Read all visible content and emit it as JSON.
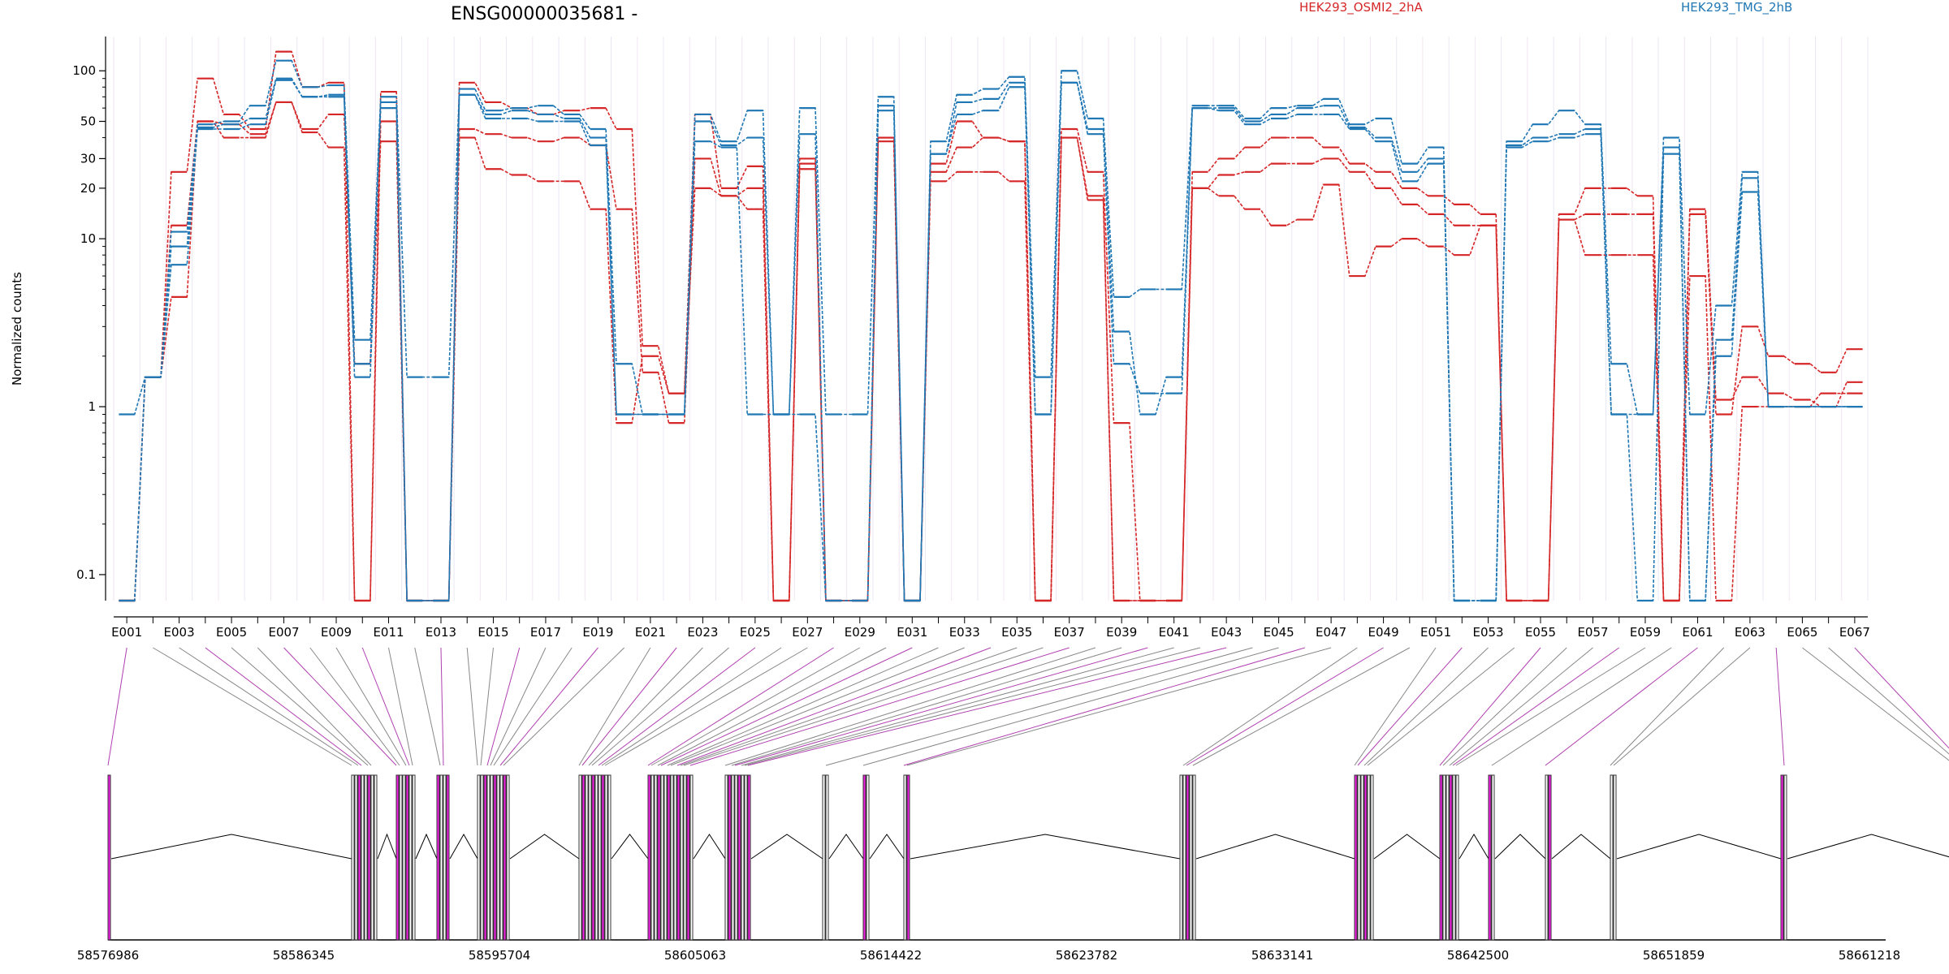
{
  "chart_data": {
    "type": "line",
    "title": "ENSG00000035681 -",
    "ylabel": "Normalized counts",
    "y_scale": "log",
    "ylim": [
      0.07,
      160
    ],
    "y_ticks": [
      0.1,
      1,
      10,
      20,
      30,
      50,
      100
    ],
    "y_tick_labels": [
      "0.1",
      "1",
      "10",
      "20",
      "30",
      "50",
      "100"
    ],
    "exon_labels": [
      "E001",
      "E003",
      "E005",
      "E007",
      "E009",
      "E011",
      "E013",
      "E015",
      "E017",
      "E019",
      "E021",
      "E023",
      "E025",
      "E027",
      "E029",
      "E031",
      "E033",
      "E035",
      "E037",
      "E039",
      "E041",
      "E043",
      "E045",
      "E047",
      "E049",
      "E051",
      "E053",
      "E055",
      "E057",
      "E059",
      "E061",
      "E063",
      "E065",
      "E067"
    ],
    "legend": [
      {
        "label": "HEK293_OSMI2_2hA",
        "color": "#d62728"
      },
      {
        "label": "HEK293_TMG_2hB",
        "color": "#1f77b4"
      }
    ],
    "series": [
      {
        "group": "HEK293_OSMI2_2hA",
        "color": "#d62728",
        "values": [
          0.07,
          1.5,
          25,
          90,
          55,
          45,
          130,
          80,
          85,
          0.07,
          75,
          0.07,
          0.07,
          85,
          65,
          60,
          55,
          58,
          60,
          45,
          2.3,
          1.2,
          55,
          20,
          27,
          0.07,
          30,
          0.07,
          0.07,
          40,
          0.07,
          28,
          50,
          40,
          38,
          0.07,
          45,
          25,
          0.8,
          0.07,
          0.07,
          25,
          30,
          35,
          40,
          40,
          35,
          28,
          25,
          20,
          18,
          16,
          14,
          0.07,
          0.07,
          14,
          20,
          20,
          18,
          0.07,
          15,
          1.1,
          1.5,
          1.2,
          1.1,
          1.0,
          1.4
        ]
      },
      {
        "group": "HEK293_OSMI2_2hA",
        "color": "#d62728",
        "values": [
          0.07,
          1.5,
          12,
          50,
          48,
          42,
          65,
          45,
          55,
          1.8,
          38,
          0.07,
          0.07,
          45,
          42,
          40,
          38,
          40,
          36,
          15,
          1.6,
          0.8,
          30,
          18,
          20,
          0.07,
          28,
          0.07,
          0.07,
          38,
          0.07,
          25,
          35,
          40,
          38,
          0.07,
          40,
          18,
          0.07,
          0.07,
          0.07,
          20,
          24,
          25,
          28,
          28,
          30,
          25,
          20,
          16,
          14,
          12,
          12,
          0.07,
          0.07,
          13,
          14,
          14,
          14,
          0.07,
          14,
          0.9,
          3.0,
          2.0,
          1.8,
          1.6,
          2.2
        ]
      },
      {
        "group": "HEK293_OSMI2_2hA",
        "color": "#d62728",
        "values": [
          0.07,
          1.5,
          4.5,
          50,
          40,
          40,
          65,
          43,
          35,
          0.07,
          50,
          0.07,
          0.07,
          40,
          26,
          24,
          22,
          22,
          15,
          0.8,
          2.0,
          1.2,
          20,
          18,
          15,
          0.07,
          26,
          0.07,
          0.07,
          40,
          0.07,
          22,
          25,
          25,
          22,
          0.07,
          40,
          17,
          0.07,
          0.07,
          0.07,
          20,
          18,
          15,
          12,
          13,
          21,
          6,
          9,
          10,
          9,
          8,
          12,
          0.07,
          0.07,
          13,
          8,
          8,
          8,
          0.07,
          6,
          0.07,
          1.0,
          1.0,
          1.0,
          1.2,
          1.2
        ]
      },
      {
        "group": "HEK293_TMG_2hB",
        "color": "#1f77b4",
        "values": [
          0.9,
          1.5,
          11,
          48,
          50,
          62,
          115,
          80,
          82,
          2.5,
          70,
          1.5,
          1.5,
          78,
          58,
          60,
          62,
          55,
          45,
          1.8,
          0.9,
          0.9,
          55,
          38,
          58,
          0.9,
          60,
          0.9,
          0.9,
          70,
          0.07,
          38,
          72,
          78,
          92,
          1.5,
          100,
          52,
          4.5,
          5.0,
          5.0,
          62,
          62,
          52,
          60,
          62,
          68,
          48,
          52,
          28,
          35,
          0.07,
          0.07,
          38,
          48,
          58,
          48,
          1.8,
          0.9,
          40,
          0.9,
          4.0,
          25,
          1,
          1,
          1,
          1
        ]
      },
      {
        "group": "HEK293_TMG_2hB",
        "color": "#1f77b4",
        "values": [
          0.07,
          1.5,
          9,
          46,
          48,
          52,
          90,
          70,
          72,
          1.8,
          65,
          0.07,
          0.07,
          72,
          55,
          58,
          55,
          52,
          40,
          0.9,
          0.9,
          0.9,
          50,
          36,
          40,
          0.9,
          42,
          0.07,
          0.07,
          62,
          0.07,
          32,
          65,
          68,
          85,
          0.9,
          85,
          45,
          2.8,
          0.9,
          1.5,
          60,
          60,
          50,
          55,
          60,
          62,
          46,
          40,
          25,
          30,
          0.07,
          0.07,
          36,
          40,
          42,
          45,
          0.9,
          0.9,
          35,
          0.07,
          2.5,
          23,
          1,
          1,
          1,
          1
        ]
      },
      {
        "group": "HEK293_TMG_2hB",
        "color": "#1f77b4",
        "values": [
          0.07,
          1.5,
          7,
          45,
          45,
          48,
          88,
          70,
          70,
          1.5,
          60,
          0.07,
          0.07,
          72,
          52,
          52,
          50,
          50,
          36,
          0.9,
          0.9,
          0.9,
          38,
          35,
          0.9,
          0.9,
          0.9,
          0.07,
          0.07,
          58,
          0.07,
          32,
          55,
          58,
          80,
          0.9,
          85,
          42,
          1.8,
          1.2,
          1.2,
          60,
          58,
          48,
          52,
          55,
          55,
          45,
          38,
          22,
          28,
          0.07,
          0.07,
          35,
          38,
          40,
          42,
          0.9,
          0.07,
          32,
          0.07,
          2.0,
          19,
          1,
          1,
          1,
          1
        ]
      }
    ],
    "genomic_coordinate_labels": [
      "58576986",
      "58586345",
      "58595704",
      "58605063",
      "58614422",
      "58623782",
      "58633141",
      "58642500",
      "58651859",
      "58661218"
    ]
  }
}
